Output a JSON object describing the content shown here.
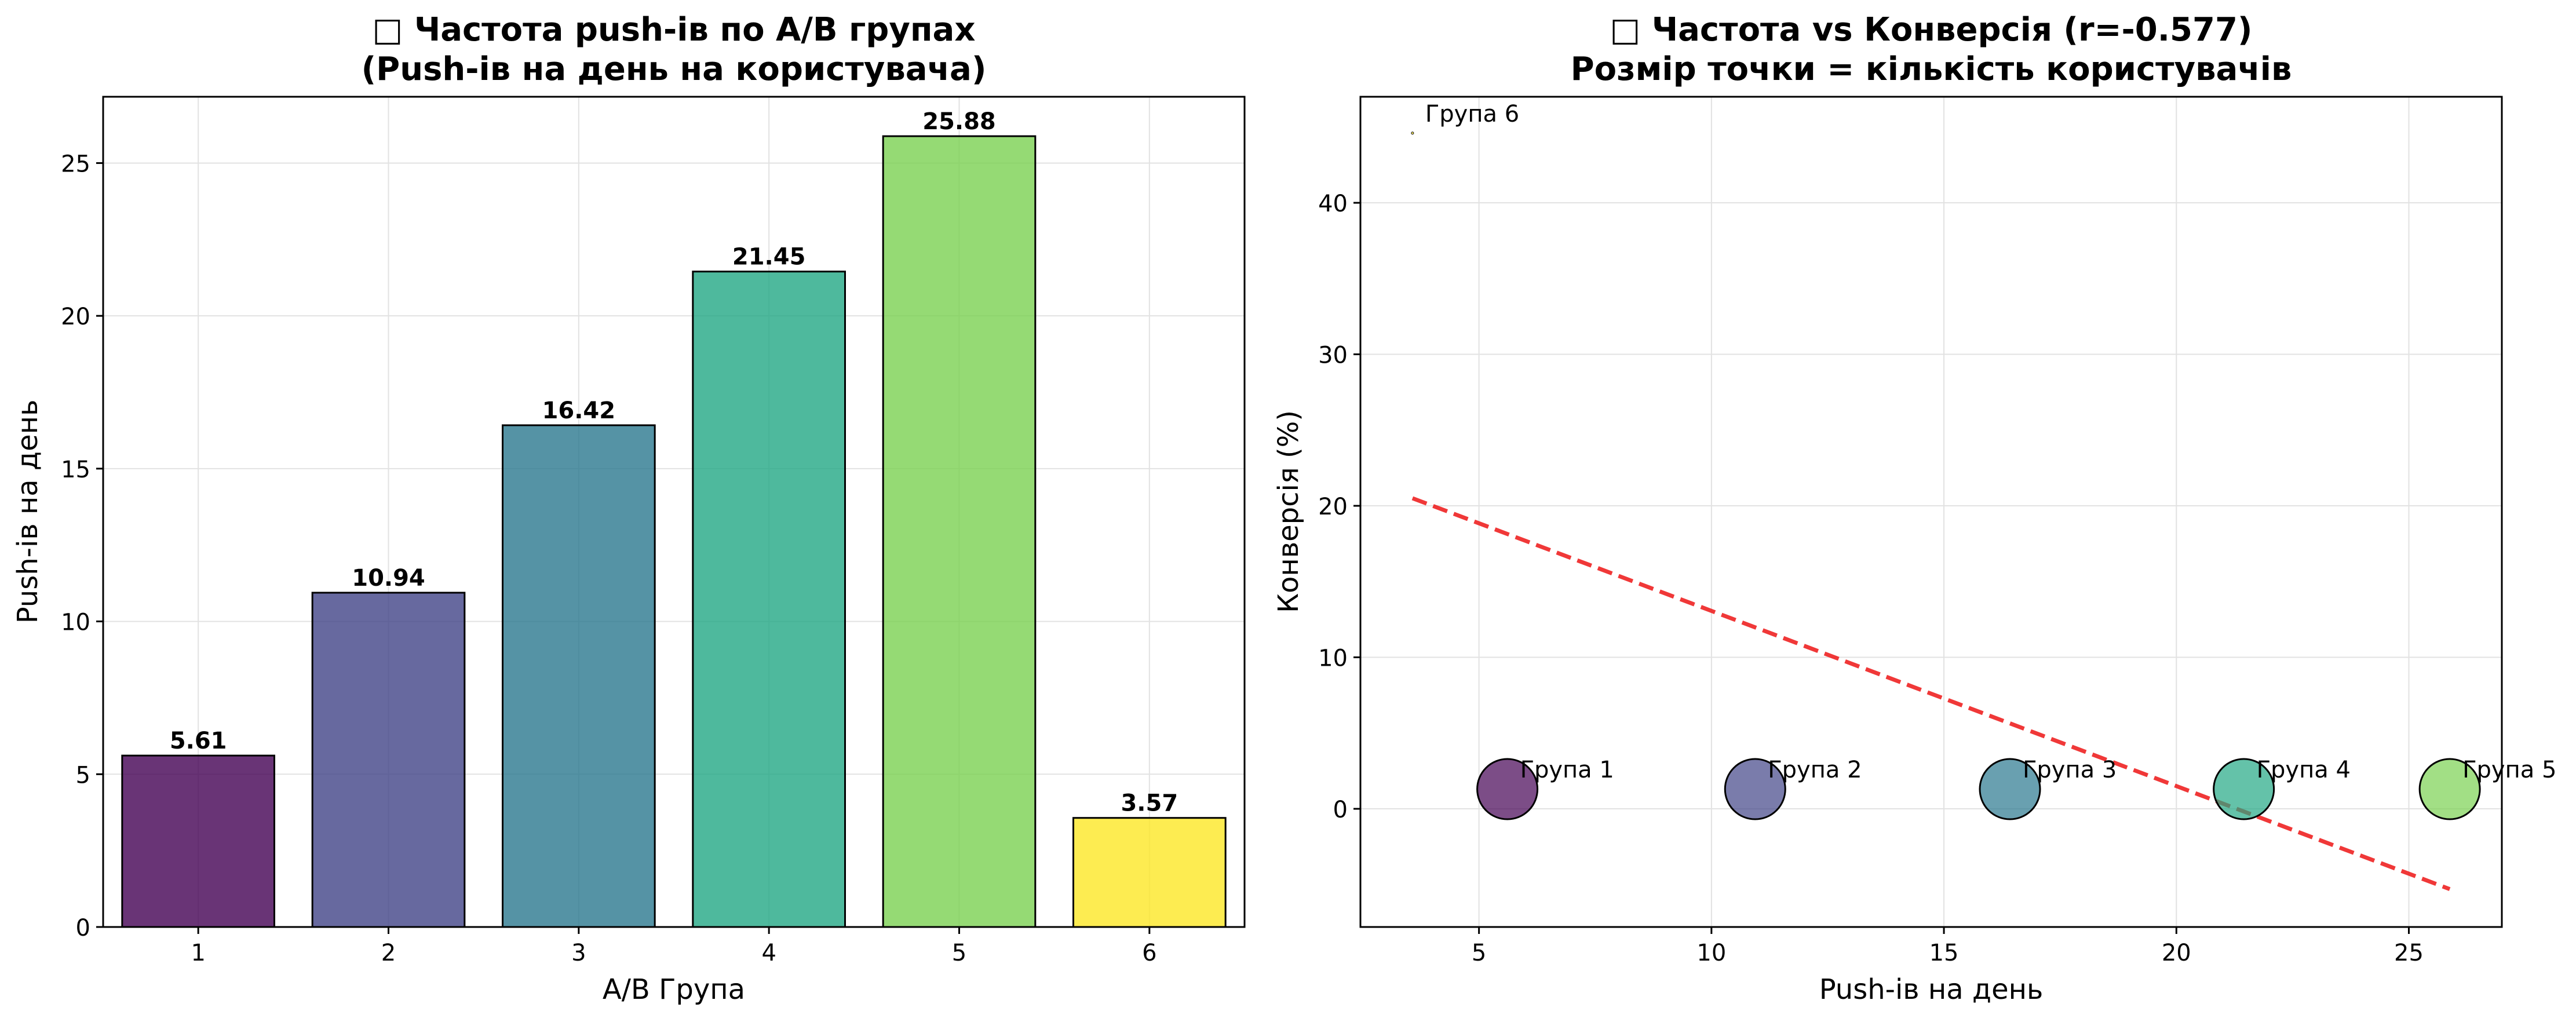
{
  "chart_data": [
    {
      "type": "bar",
      "title_lines": [
        "□ Частота push-ів по A/B групах",
        "(Push-ів на день на користувача)"
      ],
      "xlabel": "A/B Група",
      "ylabel": "Push-ів на день",
      "categories": [
        "1",
        "2",
        "3",
        "4",
        "5",
        "6"
      ],
      "values": [
        5.61,
        10.94,
        16.42,
        21.45,
        25.88,
        3.57
      ],
      "value_labels": [
        "5.61",
        "10.94",
        "16.42",
        "21.45",
        "25.88",
        "3.57"
      ],
      "colors": [
        "#440154",
        "#414487",
        "#2a788e",
        "#22a884",
        "#7ad151",
        "#fde725"
      ],
      "ylim": [
        0,
        27.17
      ],
      "yticks": [
        0,
        5,
        10,
        15,
        20,
        25
      ],
      "grid": true
    },
    {
      "type": "scatter",
      "title_lines": [
        "□ Частота vs Конверсія (r=-0.577)",
        "Розмір точки = кількість користувачів"
      ],
      "xlabel": "Push-ів на день",
      "ylabel": "Конверсія (%)",
      "points": [
        {
          "label": "Група 1",
          "x": 5.61,
          "y": 1.3,
          "color": "#440154",
          "size": "large"
        },
        {
          "label": "Група 2",
          "x": 10.94,
          "y": 1.3,
          "color": "#414487",
          "size": "large"
        },
        {
          "label": "Група 3",
          "x": 16.42,
          "y": 1.3,
          "color": "#2a788e",
          "size": "large"
        },
        {
          "label": "Група 4",
          "x": 21.45,
          "y": 1.3,
          "color": "#22a884",
          "size": "large"
        },
        {
          "label": "Група 5",
          "x": 25.88,
          "y": 1.3,
          "color": "#7ad151",
          "size": "large"
        },
        {
          "label": "Група 6",
          "x": 3.57,
          "y": 44.6,
          "color": "#fde725",
          "size": "tiny"
        }
      ],
      "trendline": {
        "x": [
          3.57,
          25.88
        ],
        "y": [
          20.5,
          -5.3
        ],
        "color": "#ee2222",
        "style": "dashed"
      },
      "xlim": [
        2.45,
        27.0
      ],
      "ylim": [
        -7.8,
        47.0
      ],
      "xticks": [
        5,
        10,
        15,
        20,
        25
      ],
      "yticks": [
        0,
        10,
        20,
        30,
        40
      ],
      "grid": true
    }
  ]
}
